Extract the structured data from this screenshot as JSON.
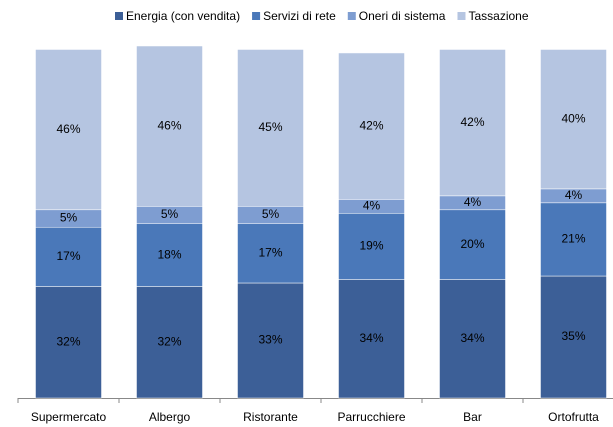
{
  "chart_data": {
    "type": "stacked_bar",
    "categories": [
      "Supermercato",
      "Albergo",
      "Ristorante",
      "Parrucchiere",
      "Bar",
      "Ortofrutta"
    ],
    "series": [
      {
        "name": "Energia (con vendita)",
        "color": "#3c5f97",
        "values": [
          32,
          32,
          33,
          34,
          34,
          35
        ],
        "value_labels": [
          "32%",
          "32%",
          "33%",
          "34%",
          "34%",
          "35%"
        ]
      },
      {
        "name": "Servizi di rete",
        "color": "#4a78b9",
        "values": [
          17,
          18,
          17,
          19,
          20,
          21
        ],
        "value_labels": [
          "17%",
          "18%",
          "17%",
          "19%",
          "20%",
          "21%"
        ]
      },
      {
        "name": "Oneri di sistema",
        "color": "#7e9dd1",
        "values": [
          5,
          5,
          5,
          4,
          4,
          4
        ],
        "value_labels": [
          "5%",
          "5%",
          "5%",
          "4%",
          "4%",
          "4%"
        ]
      },
      {
        "name": "Tassazione",
        "color": "#b5c5e1",
        "values": [
          46,
          46,
          45,
          42,
          42,
          40
        ],
        "value_labels": [
          "46%",
          "46%",
          "45%",
          "42%",
          "42%",
          "40%"
        ]
      }
    ],
    "legend": "top"
  }
}
